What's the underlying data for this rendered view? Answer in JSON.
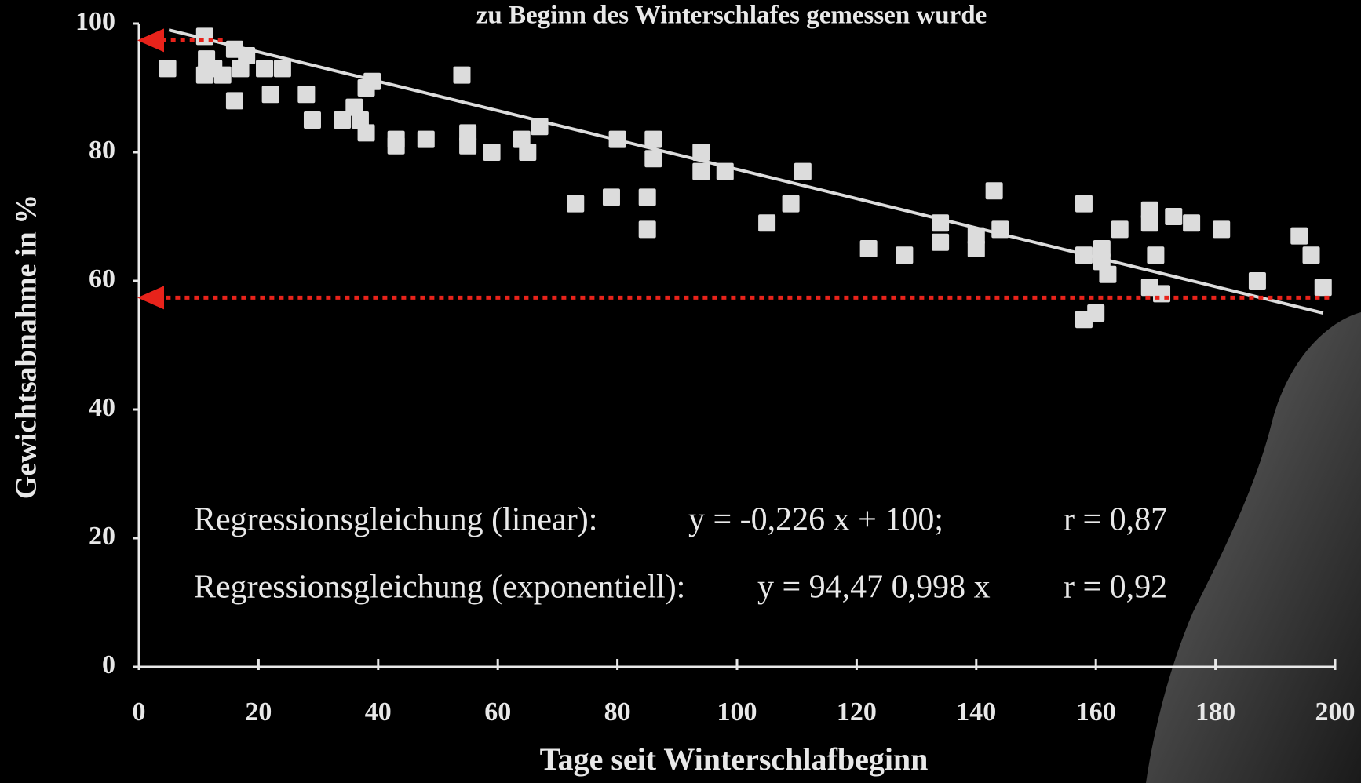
{
  "chart_data": {
    "type": "scatter",
    "title": "zu Beginn des Winterschlafes gemessen wurde",
    "x_label": "Tage seit Winterschlafbeginn",
    "y_label": "Gewichtsabnahme in %",
    "xlim": [
      0,
      200
    ],
    "ylim": [
      0,
      100
    ],
    "xticks": [
      0,
      20,
      40,
      60,
      80,
      100,
      120,
      140,
      160,
      180,
      200
    ],
    "yticks": [
      0,
      20,
      40,
      60,
      80,
      100
    ],
    "color": "#dcdcdc",
    "x": [
      4.8,
      11,
      11.3,
      11,
      12.5,
      14,
      16,
      16,
      17,
      18,
      21,
      22,
      24,
      28,
      29,
      34,
      36,
      37,
      38,
      38,
      39,
      43,
      43,
      48,
      54,
      55,
      55,
      59,
      64,
      65,
      67,
      73,
      79,
      80,
      85,
      85,
      86,
      86,
      94,
      94,
      98,
      105,
      109,
      111,
      122,
      128,
      134,
      134,
      140,
      140,
      143,
      144,
      158,
      158,
      158,
      160,
      161,
      161,
      162,
      164,
      169,
      169,
      170,
      169,
      171,
      173,
      176,
      181,
      187,
      194,
      196,
      198
    ],
    "values": [
      93,
      98,
      94.5,
      92,
      93,
      92,
      96,
      88,
      93,
      95,
      93,
      89,
      93,
      89,
      85,
      85,
      87,
      85,
      83,
      90,
      91,
      82,
      81,
      82,
      92,
      83,
      81,
      80,
      82,
      80,
      84,
      72,
      73,
      82,
      73,
      68,
      82,
      79,
      80,
      77,
      77,
      69,
      72,
      77,
      65,
      64,
      69,
      66,
      67,
      65,
      74,
      68,
      72,
      64,
      54,
      55,
      65,
      63,
      61,
      68,
      71,
      69,
      64,
      59,
      58,
      70,
      69,
      68,
      60,
      67,
      64,
      59
    ],
    "regression_line": {
      "color": "#dcdcdc",
      "x": [
        5,
        198
      ],
      "values": [
        99,
        55
      ]
    },
    "reference_lines": {
      "color": "#e8231b",
      "x": [
        14,
        199
      ],
      "values": [
        97.4,
        57.4
      ]
    },
    "annotations": [
      [
        "Regressionsgleichung (linear):",
        "y = -0,226  x + 100;",
        "r = 0,87"
      ],
      [
        "Regressionsgleichung (exponentiell):",
        "y = 94,47  0,998 x",
        "r = 0,92"
      ]
    ]
  }
}
